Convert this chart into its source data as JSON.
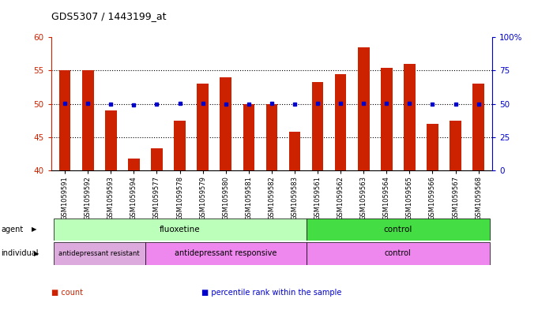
{
  "title": "GDS5307 / 1443199_at",
  "samples": [
    "GSM1059591",
    "GSM1059592",
    "GSM1059593",
    "GSM1059594",
    "GSM1059577",
    "GSM1059578",
    "GSM1059579",
    "GSM1059580",
    "GSM1059581",
    "GSM1059582",
    "GSM1059583",
    "GSM1059561",
    "GSM1059562",
    "GSM1059563",
    "GSM1059564",
    "GSM1059565",
    "GSM1059566",
    "GSM1059567",
    "GSM1059568"
  ],
  "counts": [
    55.0,
    55.1,
    49.0,
    41.8,
    43.3,
    47.5,
    53.0,
    54.0,
    50.0,
    50.0,
    45.8,
    53.3,
    54.5,
    58.5,
    55.4,
    56.0,
    47.0,
    47.5,
    53.0
  ],
  "percentiles": [
    50.5,
    50.5,
    49.8,
    49.3,
    49.7,
    50.2,
    50.5,
    50.0,
    50.0,
    50.3,
    49.7,
    50.2,
    50.3,
    50.5,
    50.2,
    50.3,
    49.7,
    49.7,
    50.0
  ],
  "ylim_left": [
    40,
    60
  ],
  "ylim_right": [
    0,
    100
  ],
  "yticks_left": [
    40,
    45,
    50,
    55,
    60
  ],
  "yticks_right": [
    0,
    25,
    50,
    75,
    100
  ],
  "ytick_labels_right": [
    "0",
    "25",
    "50",
    "75",
    "100%"
  ],
  "bar_color": "#cc2200",
  "dot_color": "#0000cc",
  "agent_groups": [
    {
      "label": "fluoxetine",
      "start": 0,
      "end": 11,
      "color": "#bbffbb"
    },
    {
      "label": "control",
      "start": 11,
      "end": 19,
      "color": "#44dd44"
    }
  ],
  "individual_groups": [
    {
      "label": "antidepressant resistant",
      "start": 0,
      "end": 4,
      "color": "#ddaadd"
    },
    {
      "label": "antidepressant responsive",
      "start": 4,
      "end": 11,
      "color": "#ee88ee"
    },
    {
      "label": "control",
      "start": 11,
      "end": 19,
      "color": "#ee88ee"
    }
  ],
  "legend_items": [
    {
      "color": "#cc2200",
      "label": "count"
    },
    {
      "color": "#0000cc",
      "label": "percentile rank within the sample"
    }
  ],
  "plot_bg_color": "#ffffff"
}
